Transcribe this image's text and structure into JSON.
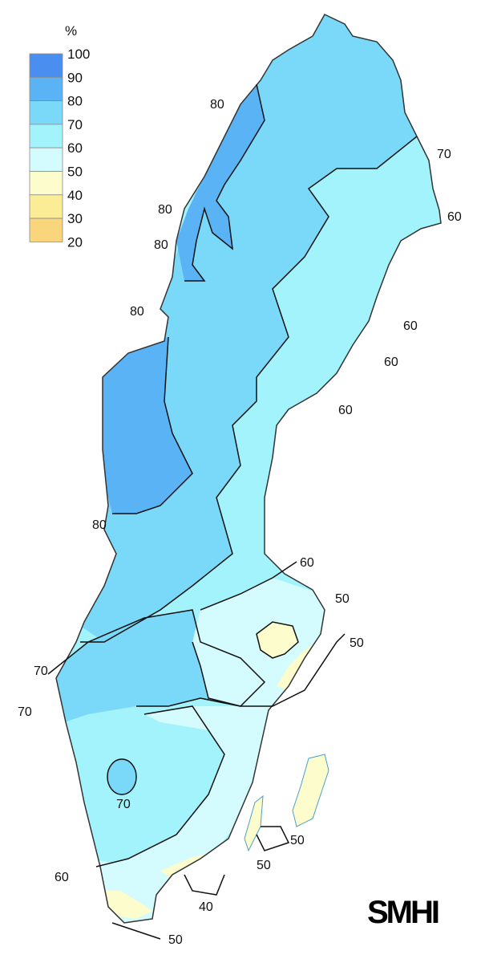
{
  "legend": {
    "unit": "%",
    "ticks": [
      "100",
      "90",
      "80",
      "70",
      "60",
      "50",
      "40",
      "30",
      "20"
    ],
    "bins": [
      {
        "range": "90-100",
        "color": "#4a8ff0"
      },
      {
        "range": "80-90",
        "color": "#5ab3f5"
      },
      {
        "range": "70-80",
        "color": "#7ad8f8"
      },
      {
        "range": "60-70",
        "color": "#a2f3fb"
      },
      {
        "range": "50-60",
        "color": "#d4fbfd"
      },
      {
        "range": "40-50",
        "color": "#fdfccd"
      },
      {
        "range": "30-40",
        "color": "#fbec96"
      },
      {
        "range": "20-30",
        "color": "#f9d57b"
      }
    ]
  },
  "contour_labels": [
    "80",
    "70",
    "80",
    "60",
    "80",
    "60",
    "80",
    "60",
    "60",
    "80",
    "60",
    "50",
    "50",
    "70",
    "70",
    "70",
    "50",
    "50",
    "60",
    "40",
    "50"
  ],
  "logo": "SMHI"
}
